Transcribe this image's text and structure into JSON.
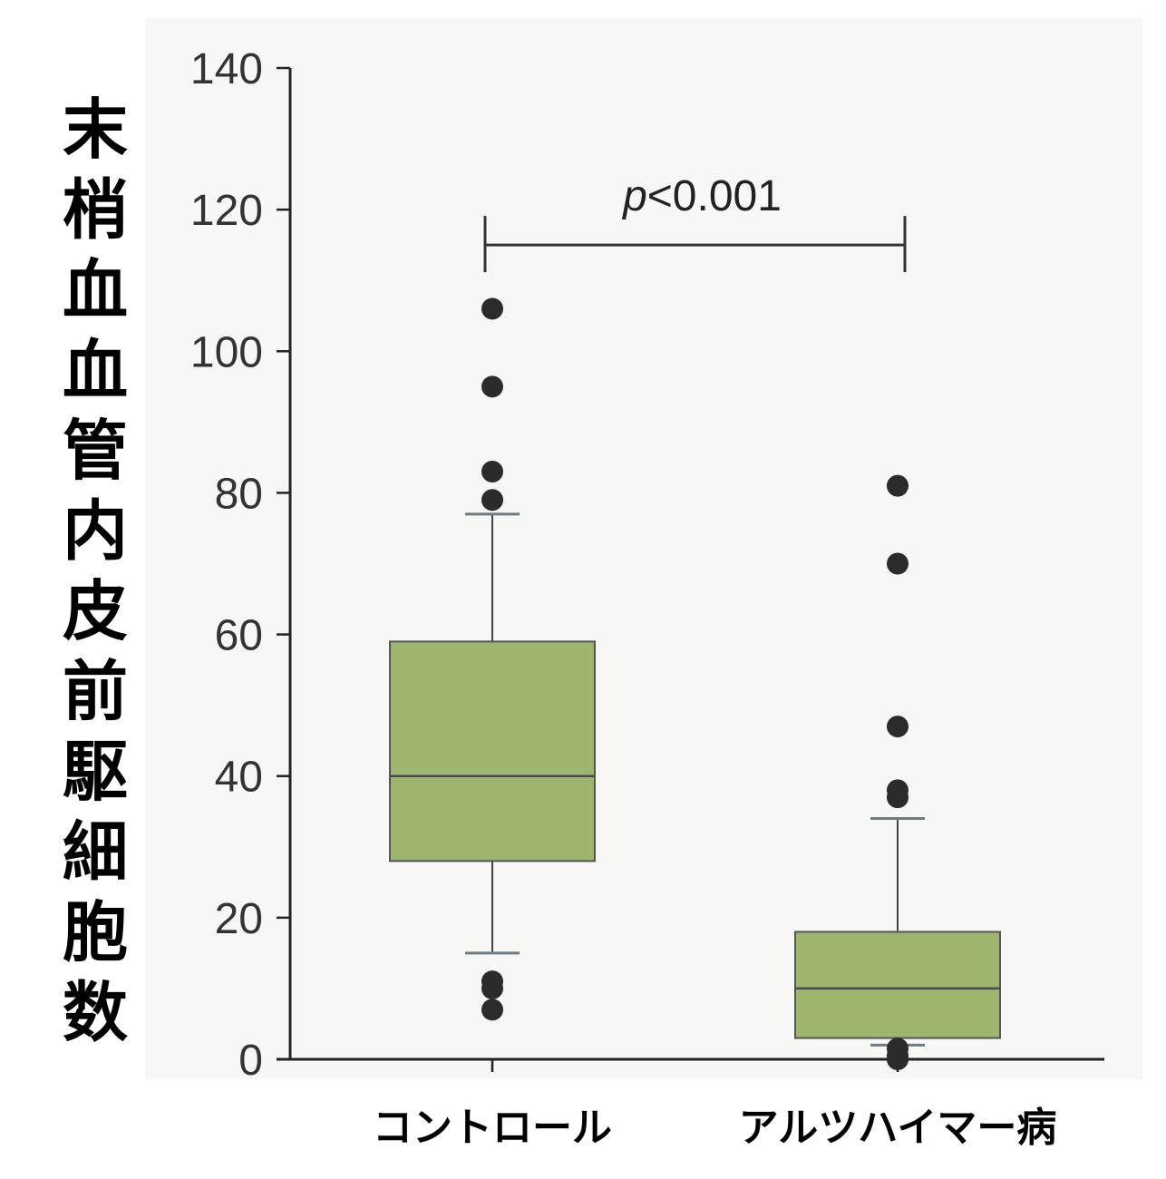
{
  "chart_data": {
    "type": "box",
    "ylabel": "末梢血血管内皮前駆細胞数",
    "ylim": [
      0,
      140
    ],
    "yticks": [
      "0",
      "20",
      "40",
      "60",
      "80",
      "100",
      "120",
      "140"
    ],
    "categories": [
      "コントロール",
      "アルツハイマー病"
    ],
    "boxes": [
      {
        "q1": 28,
        "median": 40,
        "q3": 59,
        "whisker_low": 15,
        "whisker_high": 77,
        "outliers": [
          106,
          95,
          83,
          79,
          11,
          10,
          7
        ]
      },
      {
        "q1": 3,
        "median": 10,
        "q3": 18,
        "whisker_low": 2,
        "whisker_high": 34,
        "outliers": [
          81,
          70,
          47,
          38,
          37,
          1.5,
          0.5,
          0
        ]
      }
    ],
    "significance": {
      "text_prefix": "p",
      "text_suffix": "<0.001",
      "y": 115
    },
    "colors": {
      "box": "#9db56e",
      "outlier": "#2b2b2b"
    }
  }
}
